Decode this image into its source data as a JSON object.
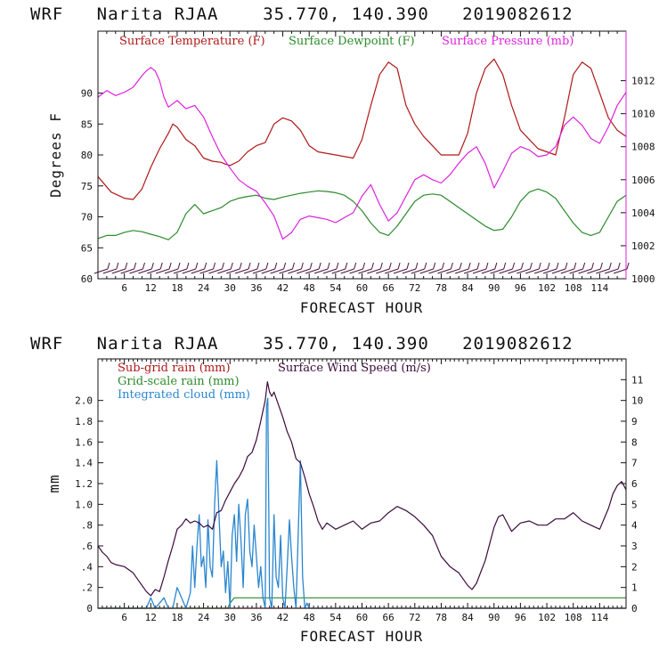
{
  "chart_data": [
    {
      "type": "line",
      "title": "WRF   Narita RJAA    35.770, 140.390   2019082612",
      "xlabel": "FORECAST HOUR",
      "ylabel": "Degrees F",
      "xlim": [
        0,
        120
      ],
      "ylim": [
        60,
        100
      ],
      "y2lim": [
        1000,
        1015
      ],
      "x_ticks": [
        6,
        12,
        18,
        24,
        30,
        36,
        42,
        48,
        54,
        60,
        66,
        72,
        78,
        84,
        90,
        96,
        102,
        108,
        114
      ],
      "y_ticks": [
        60,
        65,
        70,
        75,
        80,
        85,
        90
      ],
      "y2_ticks": [
        1000,
        1002,
        1004,
        1006,
        1008,
        1010,
        1012
      ],
      "series": [
        {
          "name": "Surface Temperature (F)",
          "axis": "left",
          "color": "#b01818",
          "x": [
            0,
            3,
            6,
            8,
            10,
            12,
            14,
            16,
            17,
            18,
            20,
            22,
            24,
            26,
            28,
            29,
            30,
            32,
            34,
            36,
            38,
            40,
            42,
            44,
            46,
            48,
            50,
            54,
            58,
            60,
            62,
            64,
            66,
            68,
            70,
            72,
            74,
            76,
            78,
            80,
            82,
            84,
            86,
            88,
            90,
            92,
            94,
            96,
            98,
            100,
            102,
            104,
            106,
            108,
            110,
            112,
            114,
            116,
            118,
            120
          ],
          "values": [
            76.5,
            74,
            73,
            72.8,
            74.5,
            78,
            81,
            83.5,
            85,
            84.5,
            82.5,
            81.5,
            79.5,
            79,
            78.8,
            78.5,
            78.3,
            79,
            80.5,
            81.5,
            82,
            85,
            86,
            85.5,
            84,
            81.5,
            80.5,
            80,
            79.5,
            82.5,
            88,
            93,
            95,
            94,
            88,
            85,
            83,
            81.5,
            80,
            80,
            80,
            83.5,
            90,
            94,
            95.5,
            93,
            88,
            84,
            82.5,
            81,
            80.5,
            80,
            86,
            93,
            95,
            94,
            90,
            86,
            84,
            83
          ]
        },
        {
          "name": "Surface Dewpoint (F)",
          "axis": "left",
          "color": "#2c8a2c",
          "x": [
            0,
            2,
            4,
            6,
            8,
            10,
            12,
            14,
            16,
            18,
            20,
            22,
            24,
            26,
            28,
            30,
            32,
            34,
            36,
            38,
            40,
            42,
            44,
            46,
            48,
            50,
            52,
            54,
            56,
            58,
            60,
            62,
            64,
            66,
            68,
            70,
            72,
            74,
            76,
            78,
            80,
            82,
            84,
            86,
            88,
            90,
            92,
            94,
            96,
            98,
            100,
            102,
            104,
            106,
            108,
            110,
            112,
            114,
            116,
            118,
            120
          ],
          "values": [
            66.5,
            67,
            67,
            67.5,
            67.8,
            67.6,
            67.2,
            66.8,
            66.3,
            67.5,
            70.5,
            72,
            70.5,
            71,
            71.5,
            72.5,
            73,
            73.3,
            73.5,
            73,
            72.8,
            73.2,
            73.5,
            73.8,
            74,
            74.2,
            74.1,
            73.9,
            73.5,
            72.5,
            71,
            69,
            67.5,
            67,
            68.5,
            70.5,
            72.5,
            73.5,
            73.7,
            73.5,
            72.5,
            71.5,
            70.5,
            69.5,
            68.5,
            67.8,
            68,
            70,
            72.5,
            74,
            74.5,
            74,
            73,
            71,
            69,
            67.5,
            67,
            67.5,
            70,
            72.5,
            73.5
          ]
        },
        {
          "name": "Surface Pressure (mb)",
          "axis": "right",
          "color": "#dd22dd",
          "x": [
            0,
            2,
            4,
            6,
            8,
            10,
            11,
            12,
            13,
            14,
            15,
            16,
            18,
            20,
            22,
            24,
            26,
            28,
            30,
            32,
            34,
            36,
            38,
            40,
            42,
            44,
            46,
            48,
            50,
            52,
            54,
            56,
            58,
            60,
            62,
            64,
            66,
            68,
            70,
            72,
            74,
            76,
            78,
            80,
            82,
            84,
            86,
            88,
            90,
            92,
            94,
            96,
            98,
            100,
            102,
            104,
            106,
            108,
            110,
            112,
            114,
            116,
            118,
            120
          ],
          "values": [
            1011,
            1011.4,
            1011.1,
            1011.3,
            1011.6,
            1012.3,
            1012.6,
            1012.8,
            1012.6,
            1012,
            1011,
            1010.4,
            1010.8,
            1010.3,
            1010.5,
            1009.8,
            1008.6,
            1007.5,
            1006.7,
            1006,
            1005.6,
            1005.3,
            1004.6,
            1003.8,
            1002.4,
            1002.8,
            1003.6,
            1003.8,
            1003.7,
            1003.6,
            1003.4,
            1003.7,
            1004,
            1005,
            1005.7,
            1004.5,
            1003.5,
            1004,
            1005,
            1006,
            1006.3,
            1006,
            1005.8,
            1006.3,
            1007,
            1007.6,
            1008,
            1007,
            1005.5,
            1006.5,
            1007.6,
            1008,
            1007.8,
            1007.4,
            1007.5,
            1008,
            1009.3,
            1009.8,
            1009.3,
            1008.5,
            1008.2,
            1009.2,
            1010.5,
            1011.3
          ]
        }
      ],
      "wind_barbs": {
        "x_start": 1,
        "x_end": 119,
        "spacing": 2,
        "color": "#4a0e3a"
      }
    },
    {
      "type": "line",
      "title": "WRF   Narita RJAA    35.770, 140.390   2019082612",
      "xlabel": "FORECAST HOUR",
      "ylabel": "mm",
      "xlim": [
        0,
        120
      ],
      "ylim": [
        0,
        2.4
      ],
      "y2lim": [
        0,
        12
      ],
      "x_ticks": [
        6,
        12,
        18,
        24,
        30,
        36,
        42,
        48,
        54,
        60,
        66,
        72,
        78,
        84,
        90,
        96,
        102,
        108,
        114
      ],
      "y_ticks": [
        0,
        0.2,
        0.4,
        0.6,
        0.8,
        1.0,
        1.2,
        1.4,
        1.6,
        1.8,
        2.0
      ],
      "y_tick_labels": [
        "0",
        ".2",
        ".4",
        ".6",
        ".8",
        "1.0",
        "1.2",
        "1.4",
        "1.6",
        "1.8",
        "2.0"
      ],
      "y2_ticks": [
        0,
        1,
        2,
        3,
        4,
        5,
        6,
        7,
        8,
        9,
        10,
        11
      ],
      "series": [
        {
          "name": "Sub-grid rain (mm)",
          "axis": "left",
          "color": "#b01818",
          "x": [
            0,
            120
          ],
          "values": [
            0,
            0
          ]
        },
        {
          "name": "Grid-scale rain (mm)",
          "axis": "left",
          "color": "#2c8a2c",
          "x": [
            0,
            29.5,
            30,
            31,
            120
          ],
          "values": [
            0,
            0,
            0.05,
            0.1,
            0.1
          ]
        },
        {
          "name": "Integrated cloud (mm)",
          "axis": "left",
          "color": "#2a86d0",
          "x": [
            0,
            11,
            12,
            13,
            14,
            15,
            16,
            17,
            18,
            19,
            20,
            21,
            21.5,
            22,
            22.5,
            23,
            23.5,
            24,
            24.5,
            25,
            25.5,
            26,
            26.5,
            27,
            27.5,
            28,
            28.5,
            29,
            29.5,
            30,
            30.5,
            31,
            31.5,
            32,
            32.5,
            33,
            33.5,
            34,
            34.5,
            35,
            35.5,
            36,
            36.5,
            37,
            37.5,
            38,
            38.3,
            38.6,
            39,
            39.5,
            40,
            40.5,
            41,
            41.5,
            42,
            42.5,
            43,
            43.5,
            44,
            44.5,
            45,
            45.5,
            46,
            46.5,
            47,
            47.5,
            48,
            49,
            120
          ],
          "values": [
            0,
            0,
            0.1,
            0,
            0.05,
            0.1,
            0,
            0,
            0.2,
            0.1,
            0,
            0.15,
            0.6,
            0.2,
            0.6,
            0.9,
            0.4,
            0.5,
            0.2,
            0.85,
            0.4,
            0.3,
            1.0,
            1.42,
            0.9,
            0.4,
            0.55,
            0.15,
            0.45,
            0,
            0.7,
            0.9,
            0.45,
            1.0,
            0.65,
            0.2,
            0.9,
            1.05,
            0.55,
            0.4,
            0.8,
            0.5,
            0.2,
            0.4,
            0.1,
            0,
            1.95,
            2.02,
            0.1,
            0,
            0.9,
            0.3,
            0.2,
            0.7,
            0.1,
            0,
            0.4,
            0.85,
            0.5,
            0.2,
            0,
            0.7,
            1.42,
            0.3,
            0,
            0.05,
            0,
            0,
            0
          ]
        },
        {
          "name": "Surface Wind Speed (m/s)",
          "axis": "right",
          "color": "#3a0a3a",
          "x": [
            0,
            1,
            2,
            3,
            4,
            6,
            8,
            10,
            11,
            12,
            13,
            14,
            15,
            16,
            17,
            18,
            19,
            20,
            21,
            22,
            23,
            24,
            25,
            26,
            27,
            28,
            29,
            30,
            31,
            32,
            33,
            34,
            35,
            36,
            37,
            37.5,
            38,
            38.5,
            39,
            39.5,
            40,
            41,
            42,
            43,
            44,
            45,
            46,
            47,
            48,
            49,
            50,
            51,
            52,
            54,
            56,
            58,
            60,
            62,
            64,
            66,
            68,
            70,
            72,
            74,
            76,
            78,
            80,
            82,
            84,
            85,
            86,
            88,
            90,
            91,
            92,
            94,
            96,
            98,
            100,
            102,
            104,
            106,
            108,
            110,
            112,
            114,
            116,
            117,
            118,
            119,
            120
          ],
          "values": [
            3,
            2.7,
            2.5,
            2.2,
            2.1,
            2,
            1.7,
            1.1,
            0.8,
            0.6,
            0.9,
            0.8,
            1.5,
            2.3,
            3,
            3.8,
            4,
            4.3,
            4.1,
            4.2,
            4.1,
            3.9,
            4,
            3.8,
            4.6,
            4.7,
            5.2,
            5.6,
            6,
            6.3,
            6.7,
            7.3,
            7.5,
            8.1,
            9,
            9.5,
            10,
            10.9,
            10.4,
            10.2,
            10.4,
            9.8,
            9.2,
            8.5,
            8,
            7.2,
            7,
            6.3,
            5.5,
            4.9,
            4.2,
            3.8,
            4.1,
            3.8,
            4,
            4.2,
            3.8,
            4.1,
            4.2,
            4.6,
            4.9,
            4.7,
            4.4,
            4,
            3.5,
            2.5,
            2,
            1.7,
            1.1,
            0.9,
            1.2,
            2.3,
            3.9,
            4.4,
            4.5,
            3.7,
            4.1,
            4.2,
            4,
            4,
            4.3,
            4.3,
            4.6,
            4.2,
            4,
            3.8,
            4.8,
            5.5,
            5.9,
            6.1,
            5.7
          ]
        }
      ]
    }
  ]
}
